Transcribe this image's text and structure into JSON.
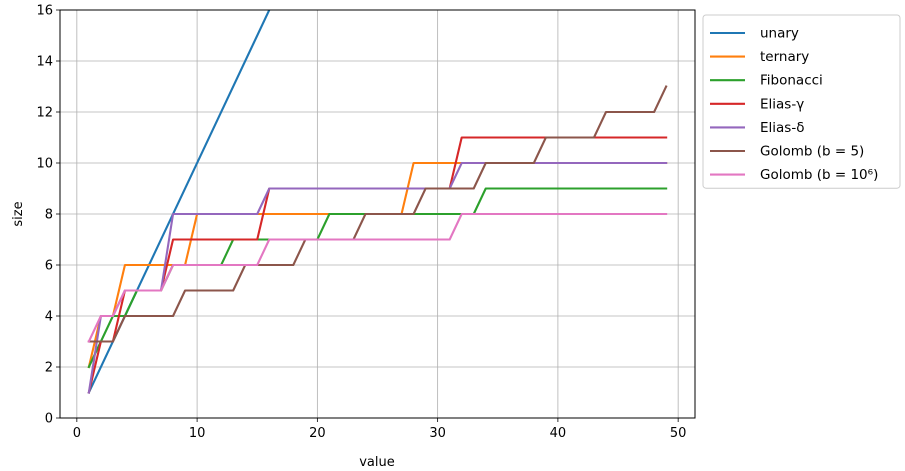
{
  "chart_data": {
    "type": "line",
    "xlabel": "value",
    "ylabel": "size",
    "xlim": [
      -1.4,
      51.4
    ],
    "ylim": [
      0,
      16
    ],
    "xticks": [
      0,
      10,
      20,
      30,
      40,
      50
    ],
    "yticks": [
      0,
      2,
      4,
      6,
      8,
      10,
      12,
      14,
      16
    ],
    "grid": true,
    "legend_position": "outside-top-right",
    "series": [
      {
        "name": "unary",
        "color": "#1f77b4",
        "x": [
          1,
          16
        ],
        "y": [
          1,
          16
        ]
      },
      {
        "name": "ternary",
        "color": "#ff7f0e",
        "x": [
          1,
          2,
          3,
          4,
          8,
          9,
          10,
          26,
          27,
          28,
          49
        ],
        "y": [
          2,
          4,
          4,
          6,
          6,
          6,
          8,
          8,
          8,
          10,
          10
        ]
      },
      {
        "name": "Fibonacci",
        "color": "#2ca02c",
        "x": [
          1,
          2,
          3,
          4,
          5,
          6,
          7,
          8,
          11,
          12,
          13,
          19,
          20,
          21,
          32,
          33,
          34,
          49
        ],
        "y": [
          2,
          3,
          4,
          4,
          5,
          5,
          5,
          6,
          6,
          6,
          7,
          7,
          7,
          8,
          8,
          8,
          9,
          9
        ]
      },
      {
        "name": "Elias-γ",
        "color": "#d62728",
        "x": [
          1,
          2,
          3,
          4,
          7,
          8,
          15,
          16,
          31,
          32,
          49
        ],
        "y": [
          1,
          3,
          3,
          5,
          5,
          7,
          7,
          9,
          9,
          11,
          11
        ]
      },
      {
        "name": "Elias-δ",
        "color": "#9467bd",
        "x": [
          1,
          2,
          3,
          4,
          7,
          8,
          15,
          16,
          31,
          32,
          49
        ],
        "y": [
          1,
          4,
          4,
          5,
          5,
          8,
          8,
          9,
          9,
          10,
          10
        ]
      },
      {
        "name": "Golomb (b = 5)",
        "color": "#8c564b",
        "x": [
          1,
          2,
          3,
          4,
          8,
          9,
          13,
          14,
          18,
          19,
          23,
          24,
          28,
          29,
          33,
          34,
          38,
          39,
          43,
          44,
          48,
          49
        ],
        "y": [
          3,
          3,
          3,
          4,
          4,
          5,
          5,
          6,
          6,
          7,
          7,
          8,
          8,
          9,
          9,
          10,
          10,
          11,
          11,
          12,
          12,
          13
        ]
      },
      {
        "name": "Golomb (b = 10⁶)",
        "color": "#e377c2",
        "x": [
          1,
          2,
          3,
          4,
          7,
          8,
          15,
          16,
          31,
          32,
          49
        ],
        "y": [
          3,
          4,
          4,
          5,
          5,
          6,
          6,
          7,
          7,
          8,
          8
        ]
      }
    ]
  }
}
